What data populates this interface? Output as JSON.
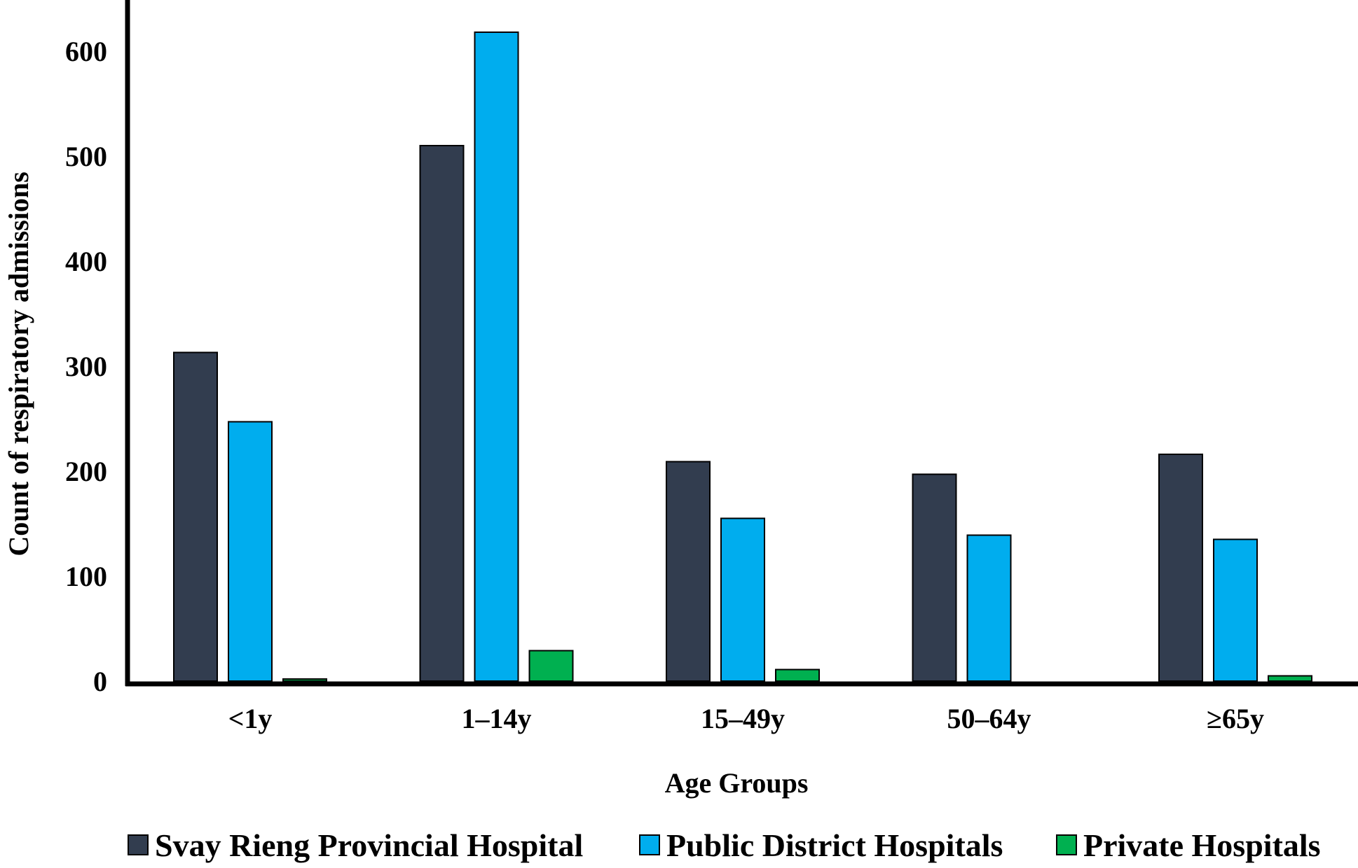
{
  "chart_data": {
    "type": "bar",
    "title": "",
    "xlabel": "Age Groups",
    "ylabel": "Count of respiratory admissions",
    "categories": [
      "<1y",
      "1–14y",
      "15–49y",
      "50–64y",
      "≥65y"
    ],
    "yticks": [
      "0",
      "100",
      "200",
      "300",
      "400",
      "500",
      "600"
    ],
    "ylim": [
      0,
      650
    ],
    "grid": false,
    "legend_position": "bottom",
    "series": [
      {
        "name": "Svay Rieng Provincial Hospital",
        "color": "#323d4f",
        "values": [
          313,
          510,
          209,
          197,
          216
        ]
      },
      {
        "name": "Public District Hospitals",
        "color": "#00adee",
        "values": [
          247,
          618,
          155,
          139,
          135
        ]
      },
      {
        "name": "Private Hospitals",
        "color": "#00b050",
        "values": [
          2,
          29,
          11,
          0,
          5
        ]
      }
    ]
  }
}
